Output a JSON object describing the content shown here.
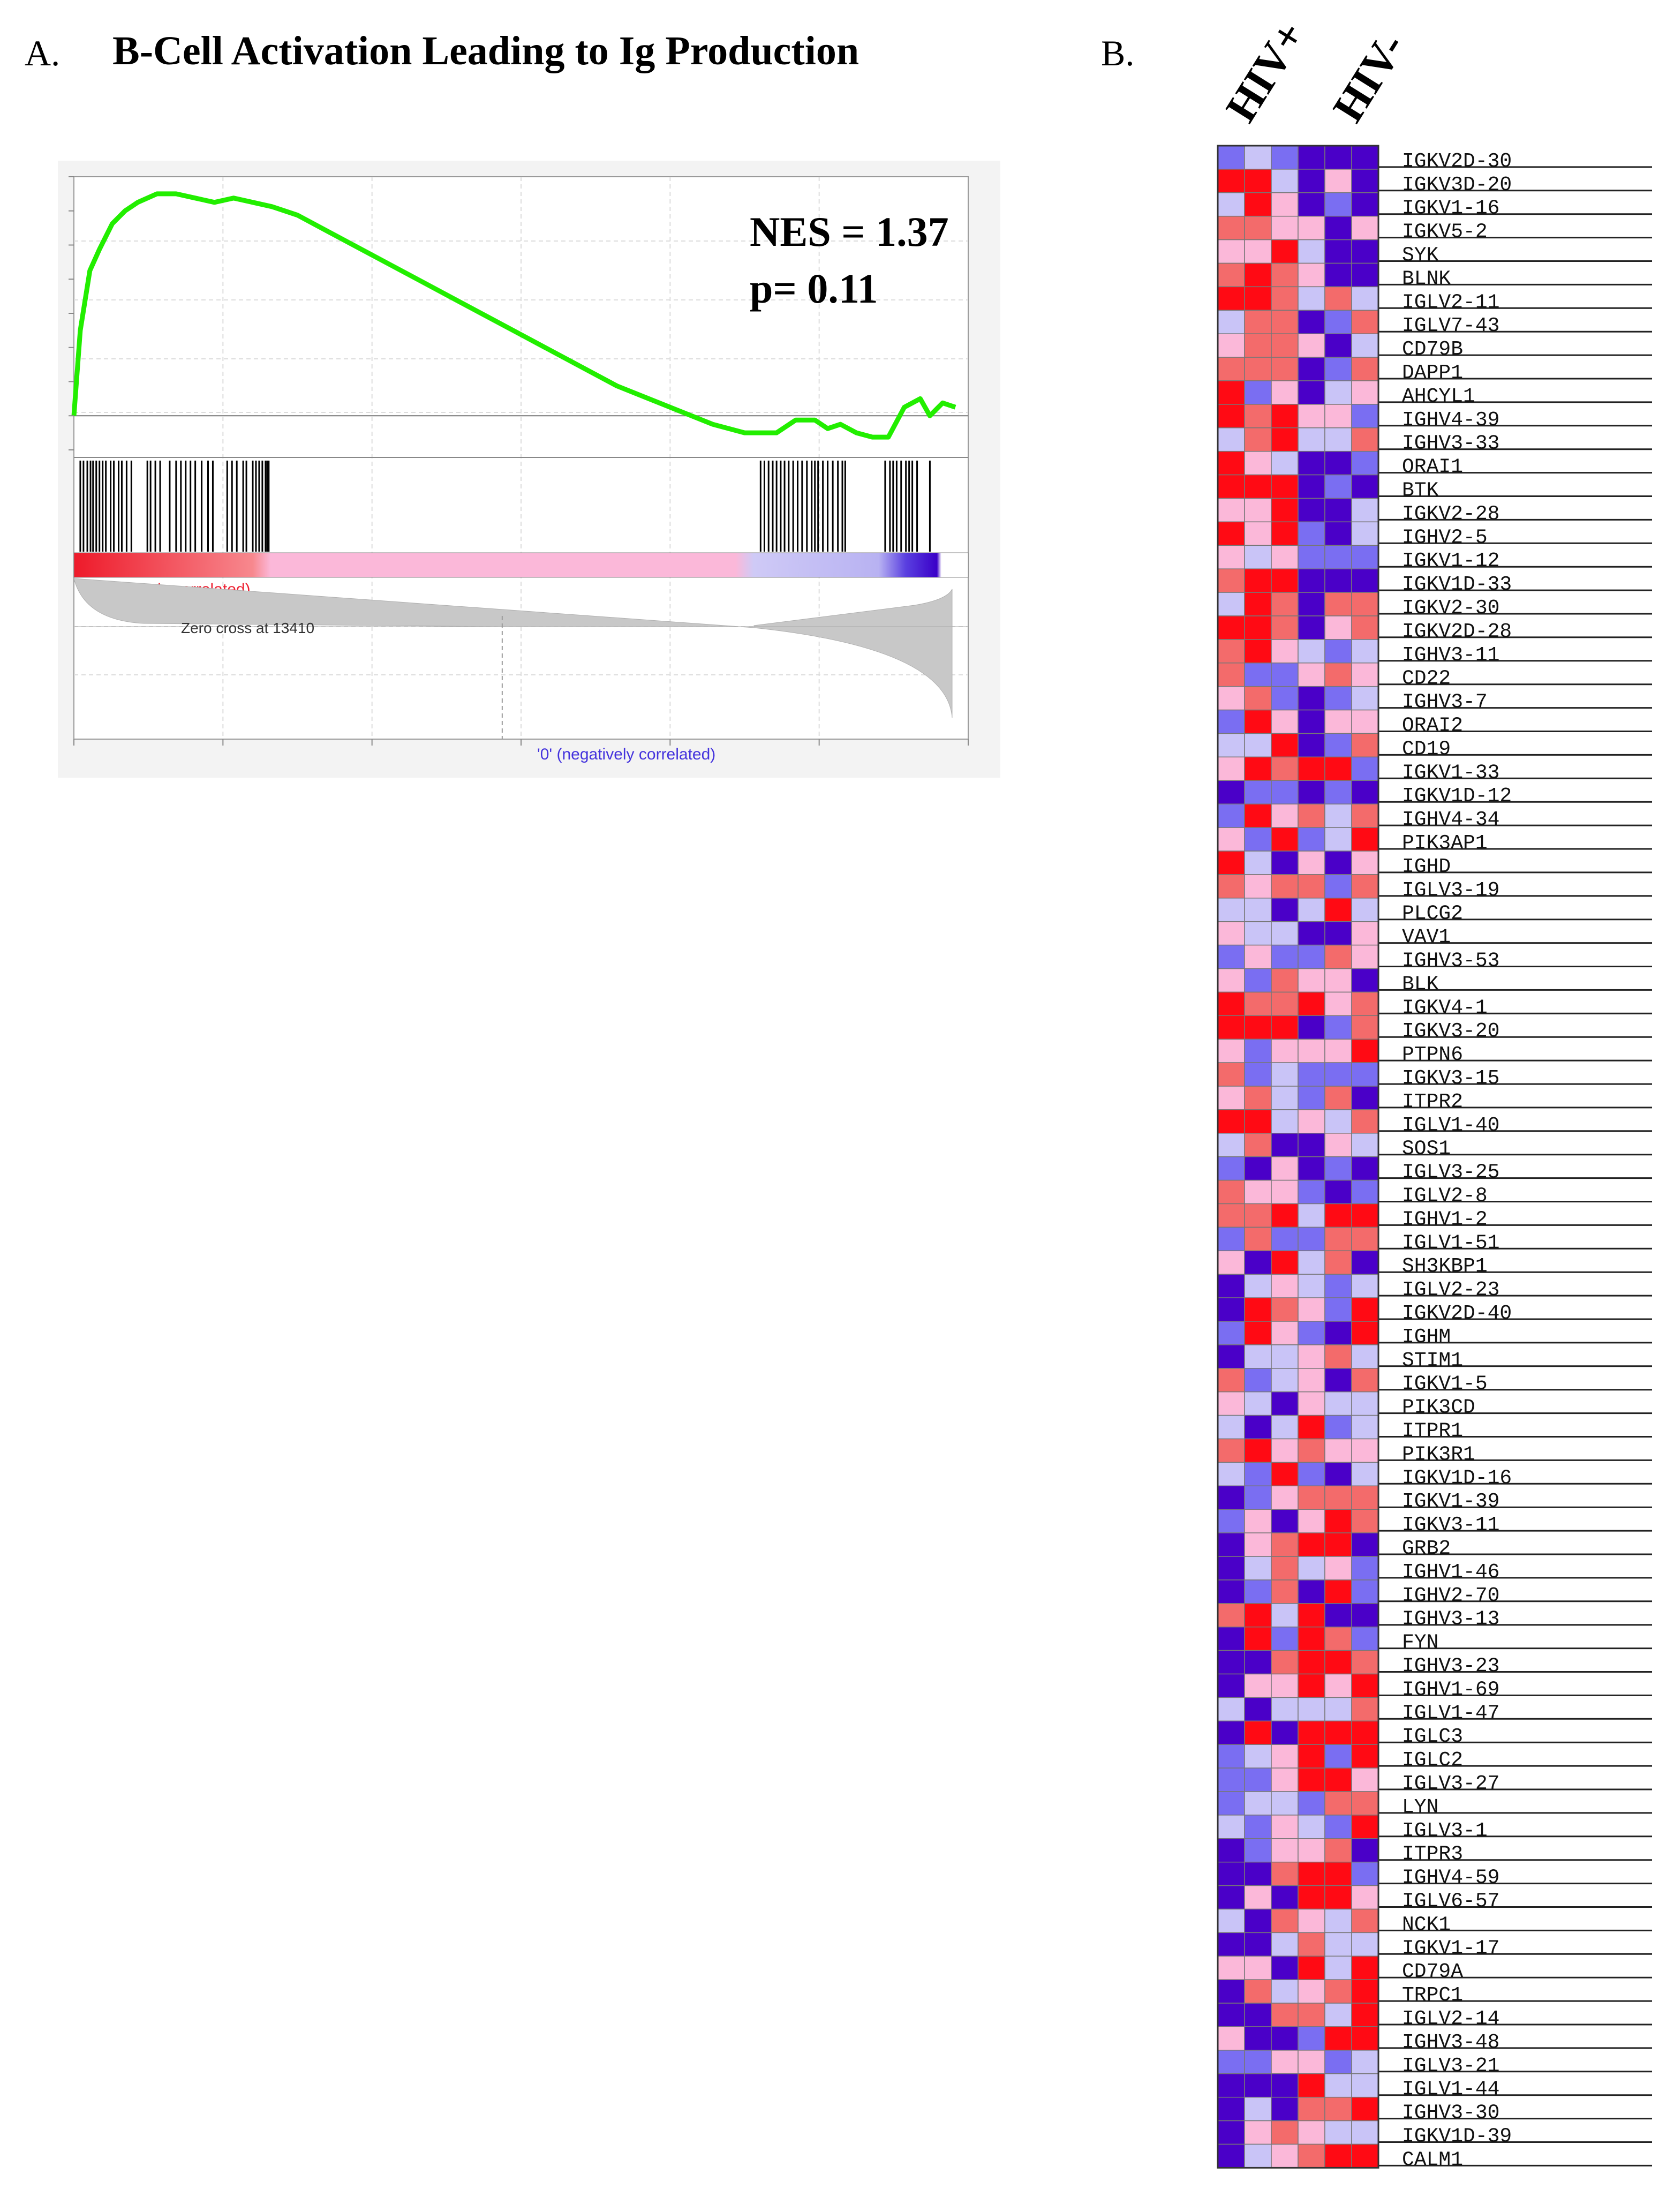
{
  "panels": {
    "a_letter": "A.",
    "a_title": "B-Cell Activation Leading to Ig Production",
    "b_letter": "B."
  },
  "gsea": {
    "nes_text": "NES = 1.37",
    "p_text": "p= 0.11",
    "pos_label": "'1' (positively correlated)",
    "neg_label": "'0' (negatively correlated)",
    "zero_cross_label": "Zero cross at 13410",
    "zero_cross": 13410,
    "curve_color": "#22ee00"
  },
  "chart_data": [
    {
      "type": "line",
      "title": "B-Cell Activation Leading to Ig Production",
      "xlabel": "",
      "ylabel": "",
      "annotations": [
        "NES = 1.37",
        "p= 0.11"
      ],
      "xlim": [
        0,
        28000
      ],
      "ylim": [
        -0.08,
        0.56
      ],
      "grid": true,
      "series": [
        {
          "x": [
            0,
            200,
            500,
            800,
            1200,
            1600,
            2000,
            2600,
            3200,
            3800,
            4400,
            5000,
            5600,
            6200,
            7000,
            8000,
            9000,
            10000,
            11000,
            12000,
            13000,
            14000,
            15000,
            16000,
            17000,
            18000,
            19000,
            20000,
            21000,
            22000,
            22600,
            23200,
            23600,
            24000,
            24500,
            25000,
            25500,
            26000,
            26500,
            26800,
            27200,
            27600
          ],
          "y": [
            0,
            0.2,
            0.34,
            0.39,
            0.45,
            0.48,
            0.5,
            0.52,
            0.52,
            0.51,
            0.5,
            0.51,
            0.5,
            0.49,
            0.47,
            0.43,
            0.39,
            0.35,
            0.31,
            0.27,
            0.23,
            0.19,
            0.15,
            0.11,
            0.07,
            0.04,
            0.01,
            -0.02,
            -0.04,
            -0.04,
            -0.01,
            -0.01,
            -0.03,
            -0.02,
            -0.04,
            -0.05,
            -0.05,
            0.02,
            0.04,
            0.0,
            0.03,
            0.02
          ]
        }
      ],
      "hits": [
        200,
        300,
        420,
        520,
        600,
        700,
        800,
        900,
        1000,
        1150,
        1250,
        1400,
        1500,
        1650,
        1800,
        2300,
        2400,
        2550,
        2700,
        3000,
        3200,
        3350,
        3500,
        3650,
        3800,
        4000,
        4200,
        4350,
        4800,
        4950,
        5100,
        5300,
        5400,
        5600,
        5700,
        5800,
        5900,
        6000,
        6050,
        6100,
        21500,
        21620,
        21750,
        21880,
        22000,
        22130,
        22250,
        22380,
        22520,
        22660,
        22800,
        22950,
        23100,
        23200,
        23300,
        23450,
        23600,
        23760,
        23920,
        24060,
        24150,
        25400,
        25550,
        25650,
        25760,
        25900,
        26050,
        26150,
        26250,
        26400,
        26800
      ]
    },
    {
      "type": "heatmap",
      "columns_label": [
        "HIV+",
        "HIV-"
      ],
      "n_columns": 6,
      "rows": [
        "IGKV2D-30",
        "IGKV3D-20",
        "IGKV1-16",
        "IGKV5-2",
        "SYK",
        "BLNK",
        "IGLV2-11",
        "IGLV7-43",
        "CD79B",
        "DAPP1",
        "AHCYL1",
        "IGHV4-39",
        "IGHV3-33",
        "ORAI1",
        "BTK",
        "IGKV2-28",
        "IGHV2-5",
        "IGKV1-12",
        "IGKV1D-33",
        "IGKV2-30",
        "IGKV2D-28",
        "IGHV3-11",
        "CD22",
        "IGHV3-7",
        "ORAI2",
        "CD19",
        "IGKV1-33",
        "IGKV1D-12",
        "IGHV4-34",
        "PIK3AP1",
        "IGHD",
        "IGLV3-19",
        "PLCG2",
        "VAV1",
        "IGHV3-53",
        "BLK",
        "IGKV4-1",
        "IGKV3-20",
        "PTPN6",
        "IGKV3-15",
        "ITPR2",
        "IGLV1-40",
        "SOS1",
        "IGLV3-25",
        "IGLV2-8",
        "IGHV1-2",
        "IGLV1-51",
        "SH3KBP1",
        "IGLV2-23",
        "IGKV2D-40",
        "IGHM",
        "STIM1",
        "IGKV1-5",
        "PIK3CD",
        "ITPR1",
        "PIK3R1",
        "IGKV1D-16",
        "IGKV1-39",
        "IGKV3-11",
        "GRB2",
        "IGHV1-46",
        "IGHV2-70",
        "IGHV3-13",
        "FYN",
        "IGHV3-23",
        "IGHV1-69",
        "IGLV1-47",
        "IGLC3",
        "IGLC2",
        "IGLV3-27",
        "LYN",
        "IGLV3-1",
        "ITPR3",
        "IGHV4-59",
        "IGLV6-57",
        "NCK1",
        "IGKV1-17",
        "CD79A",
        "TRPC1",
        "IGLV2-14",
        "IGHV3-48",
        "IGLV3-21",
        "IGLV1-44",
        "IGHV3-30",
        "IGKV1D-39",
        "CALM1"
      ],
      "palette": [
        "#4a00c8",
        "#7a6ef2",
        "#c9c4f7",
        "#fbb8d9",
        "#f36b6b",
        "#ff0a14"
      ]
    }
  ]
}
